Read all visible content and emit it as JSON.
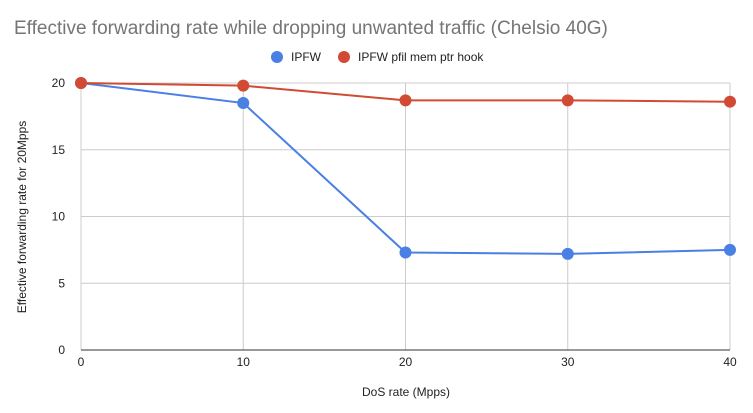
{
  "chart_data": {
    "type": "line",
    "title": "Effective forwarding rate while dropping unwanted traffic (Chelsio 40G)",
    "xlabel": "DoS rate (Mpps)",
    "ylabel": "Effective forwarding rate for 20Mpps",
    "x": [
      0,
      10,
      20,
      30,
      40
    ],
    "x_ticks": [
      "0",
      "10",
      "20",
      "30",
      "40"
    ],
    "y_ticks": [
      "0",
      "5",
      "10",
      "15",
      "20"
    ],
    "xlim": [
      0,
      40
    ],
    "ylim": [
      0,
      20
    ],
    "grid": "vertical and horizontal",
    "legend_position": "top",
    "series": [
      {
        "name": "IPFW",
        "color": "#4a7fe3",
        "values": [
          20.0,
          18.5,
          7.3,
          7.2,
          7.5
        ]
      },
      {
        "name": "IPFW pfil mem ptr hook",
        "color": "#d14b34",
        "values": [
          20.0,
          19.8,
          18.7,
          18.7,
          18.6
        ]
      }
    ]
  }
}
